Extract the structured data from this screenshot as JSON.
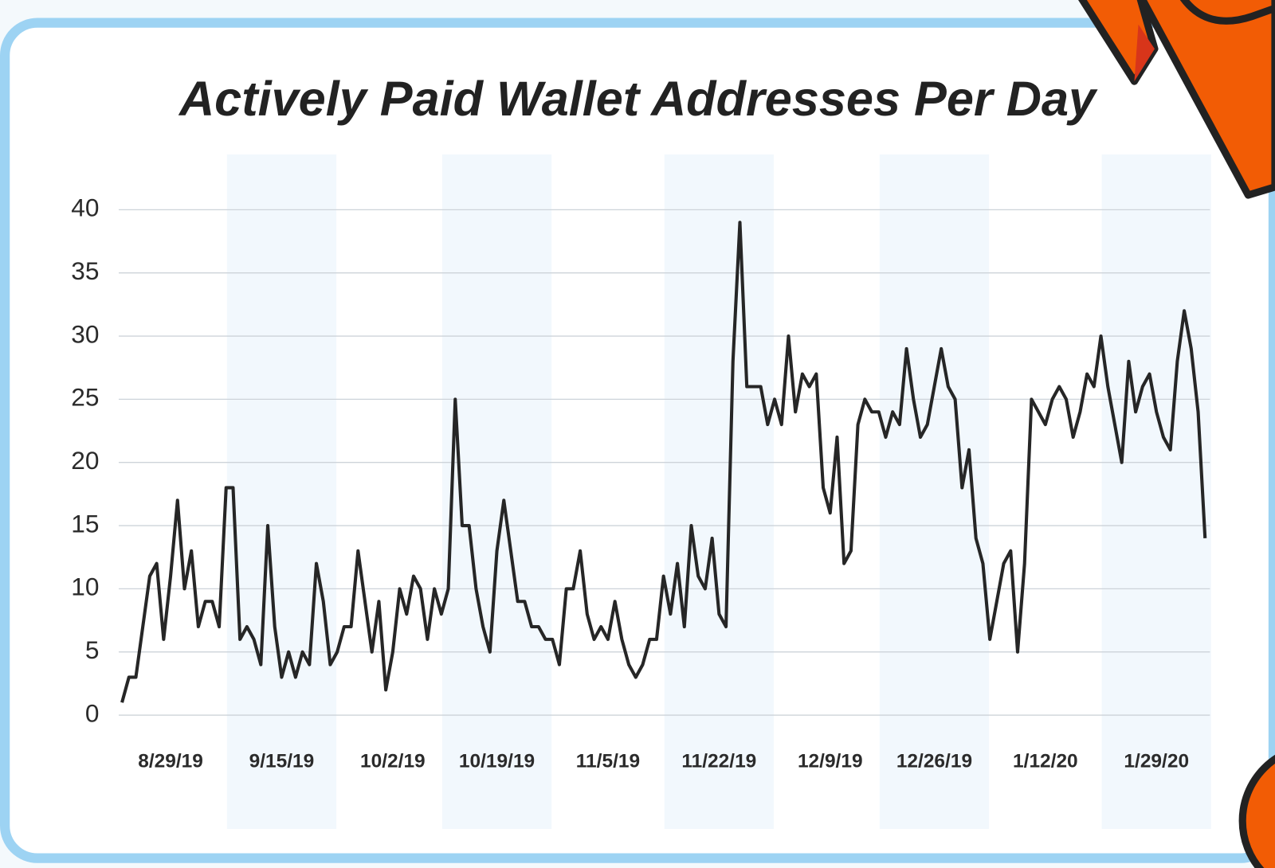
{
  "chart_data": {
    "type": "line",
    "title": "Actively Paid Wallet Addresses Per Day",
    "categories": [
      null,
      null,
      null,
      null,
      null,
      null,
      null,
      "8/29/19",
      null,
      null,
      null,
      null,
      null,
      null,
      null,
      null,
      null,
      null,
      null,
      null,
      null,
      null,
      null,
      "9/15/19",
      null,
      null,
      null,
      null,
      null,
      null,
      null,
      null,
      null,
      null,
      null,
      null,
      null,
      null,
      null,
      "10/2/19",
      null,
      null,
      null,
      null,
      null,
      null,
      null,
      null,
      null,
      null,
      null,
      null,
      null,
      null,
      "10/19/19",
      null,
      null,
      null,
      null,
      null,
      null,
      null,
      null,
      null,
      null,
      null,
      null,
      null,
      null,
      null,
      "11/5/19",
      null,
      null,
      null,
      null,
      null,
      null,
      null,
      null,
      null,
      null,
      null,
      null,
      null,
      null,
      null,
      "11/22/19",
      null,
      null,
      null,
      null,
      null,
      null,
      null,
      null,
      null,
      null,
      null,
      null,
      null,
      null,
      null,
      "12/9/19",
      null,
      null,
      null,
      null,
      null,
      null,
      null,
      null,
      null,
      null,
      null,
      null,
      null,
      null,
      "12/26/19",
      null,
      null,
      null,
      null,
      null,
      null,
      null,
      null,
      null,
      null,
      null,
      null,
      null,
      null,
      null,
      "1/12/20",
      null,
      null,
      null,
      null,
      null,
      null,
      null,
      null,
      null,
      null,
      null,
      null,
      null,
      null,
      null,
      "1/29/20",
      null,
      null,
      null,
      null,
      null,
      null,
      null
    ],
    "values": [
      1,
      3,
      3,
      7,
      11,
      12,
      6,
      11,
      17,
      10,
      13,
      7,
      9,
      9,
      7,
      18,
      18,
      6,
      7,
      6,
      4,
      15,
      7,
      3,
      5,
      3,
      5,
      4,
      12,
      9,
      4,
      5,
      7,
      7,
      13,
      9,
      5,
      9,
      2,
      5,
      10,
      8,
      11,
      10,
      6,
      10,
      8,
      10,
      25,
      15,
      15,
      10,
      7,
      5,
      13,
      17,
      13,
      9,
      9,
      7,
      7,
      6,
      6,
      4,
      10,
      10,
      13,
      8,
      6,
      7,
      6,
      9,
      6,
      4,
      3,
      4,
      6,
      6,
      11,
      8,
      12,
      7,
      15,
      11,
      10,
      14,
      8,
      7,
      28,
      39,
      26,
      26,
      26,
      23,
      25,
      23,
      30,
      24,
      27,
      26,
      27,
      18,
      16,
      22,
      12,
      13,
      23,
      25,
      24,
      24,
      22,
      24,
      23,
      29,
      25,
      22,
      23,
      26,
      29,
      26,
      25,
      18,
      21,
      14,
      12,
      6,
      9,
      12,
      13,
      5,
      12,
      25,
      24,
      23,
      25,
      26,
      25,
      22,
      24,
      27,
      26,
      30,
      26,
      23,
      20,
      28,
      24,
      26,
      27,
      24,
      22,
      21,
      28,
      32,
      29,
      24,
      14
    ],
    "color": "#262626",
    "ylim": [
      0,
      40
    ],
    "yticks": [
      0,
      5,
      10,
      15,
      20,
      25,
      30,
      35,
      40
    ],
    "grid": true
  }
}
